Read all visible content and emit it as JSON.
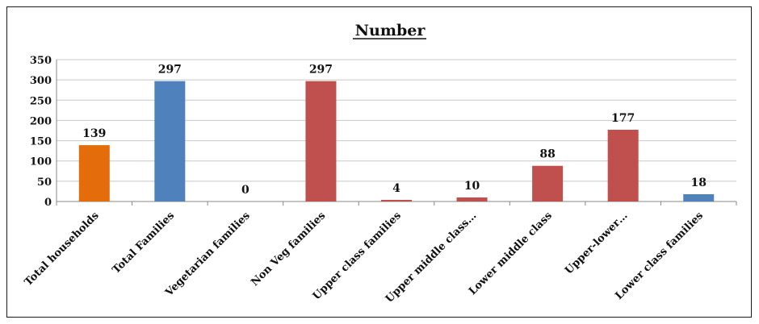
{
  "chart_data": {
    "type": "bar",
    "title": "Number",
    "categories": [
      "Total households",
      "Total Families",
      "Vegetarian families",
      "Non Veg families",
      "Upper class families",
      "Upper middle class…",
      "Lower middle class",
      "Upper-lower…",
      "Lower class families"
    ],
    "values": [
      139,
      297,
      0,
      297,
      4,
      10,
      88,
      177,
      18
    ],
    "data_labels": [
      "139",
      "297",
      "0",
      "297",
      "4",
      "10",
      "88",
      "177",
      "18"
    ],
    "bar_colors": [
      "#E46C0A",
      "#4F81BD",
      "#C0504D",
      "#C0504D",
      "#C0504D",
      "#C0504D",
      "#C0504D",
      "#C0504D",
      "#4F81BD"
    ],
    "y_ticks": [
      "0",
      "50",
      "100",
      "150",
      "200",
      "250",
      "300",
      "350"
    ],
    "ylim": [
      0,
      350
    ],
    "grid": true,
    "legend": "none"
  }
}
